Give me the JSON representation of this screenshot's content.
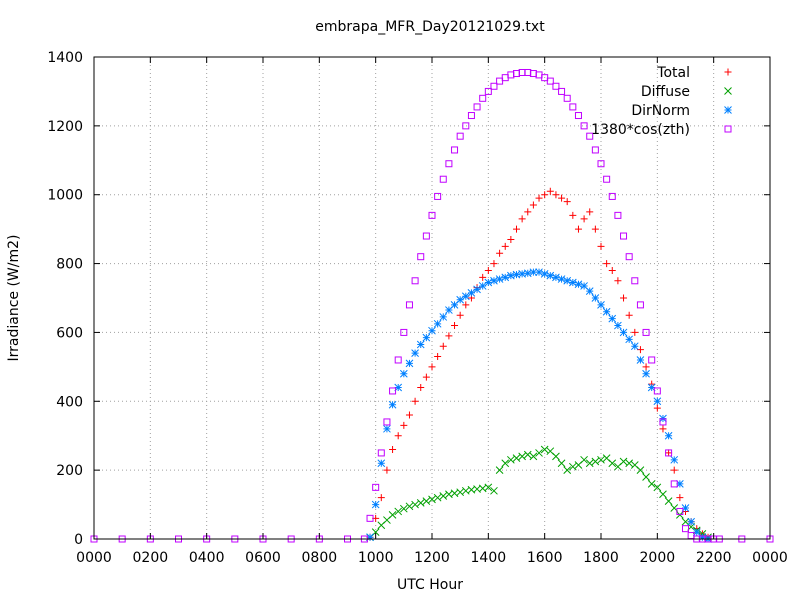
{
  "chart_data": {
    "type": "scatter",
    "title": "embrapa_MFR_Day20121029.txt",
    "xlabel": "UTC Hour",
    "ylabel": "Irradiance (W/m2)",
    "xlim": [
      0,
      24
    ],
    "ylim": [
      0,
      1400
    ],
    "x_ticks": [
      0,
      2,
      4,
      6,
      8,
      10,
      12,
      14,
      16,
      18,
      20,
      22,
      24
    ],
    "x_tick_labels": [
      "0000",
      "0200",
      "0400",
      "0600",
      "0800",
      "1000",
      "1200",
      "1400",
      "1600",
      "1800",
      "2000",
      "2200",
      "0000"
    ],
    "y_ticks": [
      0,
      200,
      400,
      600,
      800,
      1000,
      1200,
      1400
    ],
    "y_tick_labels": [
      "0",
      "200",
      "400",
      "600",
      "800",
      "1000",
      "1200",
      "1400"
    ],
    "grid": true,
    "legend_position": "top-right",
    "series": [
      {
        "name": "Total",
        "marker": "plus",
        "color": "#ff0000",
        "x": [
          9.8,
          10.0,
          10.2,
          10.4,
          10.6,
          10.8,
          11.0,
          11.2,
          11.4,
          11.6,
          11.8,
          12.0,
          12.2,
          12.4,
          12.6,
          12.8,
          13.0,
          13.2,
          13.4,
          13.6,
          13.8,
          14.0,
          14.2,
          14.4,
          14.6,
          14.8,
          15.0,
          15.2,
          15.4,
          15.6,
          15.8,
          16.0,
          16.2,
          16.4,
          16.6,
          16.8,
          17.0,
          17.2,
          17.4,
          17.6,
          17.8,
          18.0,
          18.2,
          18.4,
          18.6,
          18.8,
          19.0,
          19.2,
          19.4,
          19.6,
          19.8,
          20.0,
          20.2,
          20.4,
          20.6,
          20.8,
          21.0,
          21.2,
          21.4,
          21.6,
          21.8
        ],
        "y": [
          5,
          60,
          120,
          200,
          260,
          300,
          330,
          360,
          400,
          440,
          470,
          500,
          530,
          560,
          590,
          620,
          650,
          680,
          700,
          730,
          760,
          780,
          800,
          830,
          850,
          870,
          900,
          930,
          950,
          970,
          990,
          1000,
          1010,
          1000,
          990,
          980,
          940,
          900,
          930,
          950,
          900,
          850,
          800,
          780,
          750,
          700,
          650,
          600,
          550,
          500,
          450,
          380,
          320,
          250,
          200,
          120,
          80,
          50,
          30,
          15,
          5
        ]
      },
      {
        "name": "Diffuse",
        "marker": "cross",
        "color": "#00a000",
        "x": [
          9.8,
          10.0,
          10.2,
          10.4,
          10.6,
          10.8,
          11.0,
          11.2,
          11.4,
          11.6,
          11.8,
          12.0,
          12.2,
          12.4,
          12.6,
          12.8,
          13.0,
          13.2,
          13.4,
          13.6,
          13.8,
          14.0,
          14.2,
          14.4,
          14.6,
          14.8,
          15.0,
          15.2,
          15.4,
          15.6,
          15.8,
          16.0,
          16.2,
          16.4,
          16.6,
          16.8,
          17.0,
          17.2,
          17.4,
          17.6,
          17.8,
          18.0,
          18.2,
          18.4,
          18.6,
          18.8,
          19.0,
          19.2,
          19.4,
          19.6,
          19.8,
          20.0,
          20.2,
          20.4,
          20.6,
          20.8,
          21.0,
          21.2,
          21.4,
          21.6,
          21.8
        ],
        "y": [
          5,
          20,
          40,
          55,
          70,
          80,
          88,
          95,
          100,
          105,
          110,
          115,
          120,
          125,
          130,
          133,
          136,
          140,
          143,
          145,
          147,
          150,
          140,
          200,
          220,
          230,
          235,
          240,
          245,
          240,
          250,
          260,
          255,
          240,
          220,
          200,
          210,
          215,
          230,
          220,
          225,
          230,
          235,
          220,
          210,
          225,
          220,
          215,
          200,
          180,
          160,
          150,
          130,
          110,
          90,
          70,
          50,
          35,
          25,
          15,
          5
        ]
      },
      {
        "name": "DirNorm",
        "marker": "star",
        "color": "#0080ff",
        "x": [
          9.8,
          10.0,
          10.2,
          10.4,
          10.6,
          10.8,
          11.0,
          11.2,
          11.4,
          11.6,
          11.8,
          12.0,
          12.2,
          12.4,
          12.6,
          12.8,
          13.0,
          13.2,
          13.4,
          13.6,
          13.8,
          14.0,
          14.2,
          14.4,
          14.6,
          14.8,
          15.0,
          15.2,
          15.4,
          15.6,
          15.8,
          16.0,
          16.2,
          16.4,
          16.6,
          16.8,
          17.0,
          17.2,
          17.4,
          17.6,
          17.8,
          18.0,
          18.2,
          18.4,
          18.6,
          18.8,
          19.0,
          19.2,
          19.4,
          19.6,
          19.8,
          20.0,
          20.2,
          20.4,
          20.6,
          20.8,
          21.0,
          21.2,
          21.4,
          21.6,
          21.8
        ],
        "y": [
          5,
          100,
          220,
          320,
          390,
          440,
          480,
          510,
          540,
          565,
          585,
          605,
          625,
          645,
          665,
          680,
          695,
          705,
          715,
          725,
          735,
          745,
          750,
          755,
          760,
          765,
          768,
          770,
          772,
          775,
          775,
          770,
          765,
          760,
          755,
          750,
          745,
          740,
          735,
          720,
          700,
          680,
          660,
          640,
          620,
          600,
          580,
          560,
          520,
          480,
          440,
          400,
          350,
          300,
          230,
          160,
          90,
          50,
          20,
          5,
          0
        ]
      },
      {
        "name": "1380*cos(zth)",
        "marker": "square",
        "color": "#c000ff",
        "x": [
          0,
          1,
          2,
          3,
          4,
          5,
          6,
          7,
          8,
          9,
          9.6,
          9.8,
          10.0,
          10.2,
          10.4,
          10.6,
          10.8,
          11.0,
          11.2,
          11.4,
          11.6,
          11.8,
          12.0,
          12.2,
          12.4,
          12.6,
          12.8,
          13.0,
          13.2,
          13.4,
          13.6,
          13.8,
          14.0,
          14.2,
          14.4,
          14.6,
          14.8,
          15.0,
          15.2,
          15.4,
          15.6,
          15.8,
          16.0,
          16.2,
          16.4,
          16.6,
          16.8,
          17.0,
          17.2,
          17.4,
          17.6,
          17.8,
          18.0,
          18.2,
          18.4,
          18.6,
          18.8,
          19.0,
          19.2,
          19.4,
          19.6,
          19.8,
          20.0,
          20.2,
          20.4,
          20.6,
          20.8,
          21.0,
          21.2,
          21.4,
          21.6,
          21.8,
          22.0,
          22.2,
          23,
          24
        ],
        "y": [
          0,
          0,
          0,
          0,
          0,
          0,
          0,
          0,
          0,
          0,
          0,
          60,
          150,
          250,
          340,
          430,
          520,
          600,
          680,
          750,
          820,
          880,
          940,
          995,
          1045,
          1090,
          1130,
          1170,
          1200,
          1230,
          1255,
          1280,
          1300,
          1315,
          1330,
          1340,
          1348,
          1352,
          1355,
          1355,
          1352,
          1348,
          1340,
          1330,
          1315,
          1300,
          1280,
          1255,
          1230,
          1200,
          1170,
          1130,
          1090,
          1045,
          995,
          940,
          880,
          820,
          750,
          680,
          600,
          520,
          430,
          340,
          250,
          160,
          80,
          30,
          10,
          0,
          0,
          0,
          0,
          0,
          0,
          0
        ]
      }
    ]
  }
}
